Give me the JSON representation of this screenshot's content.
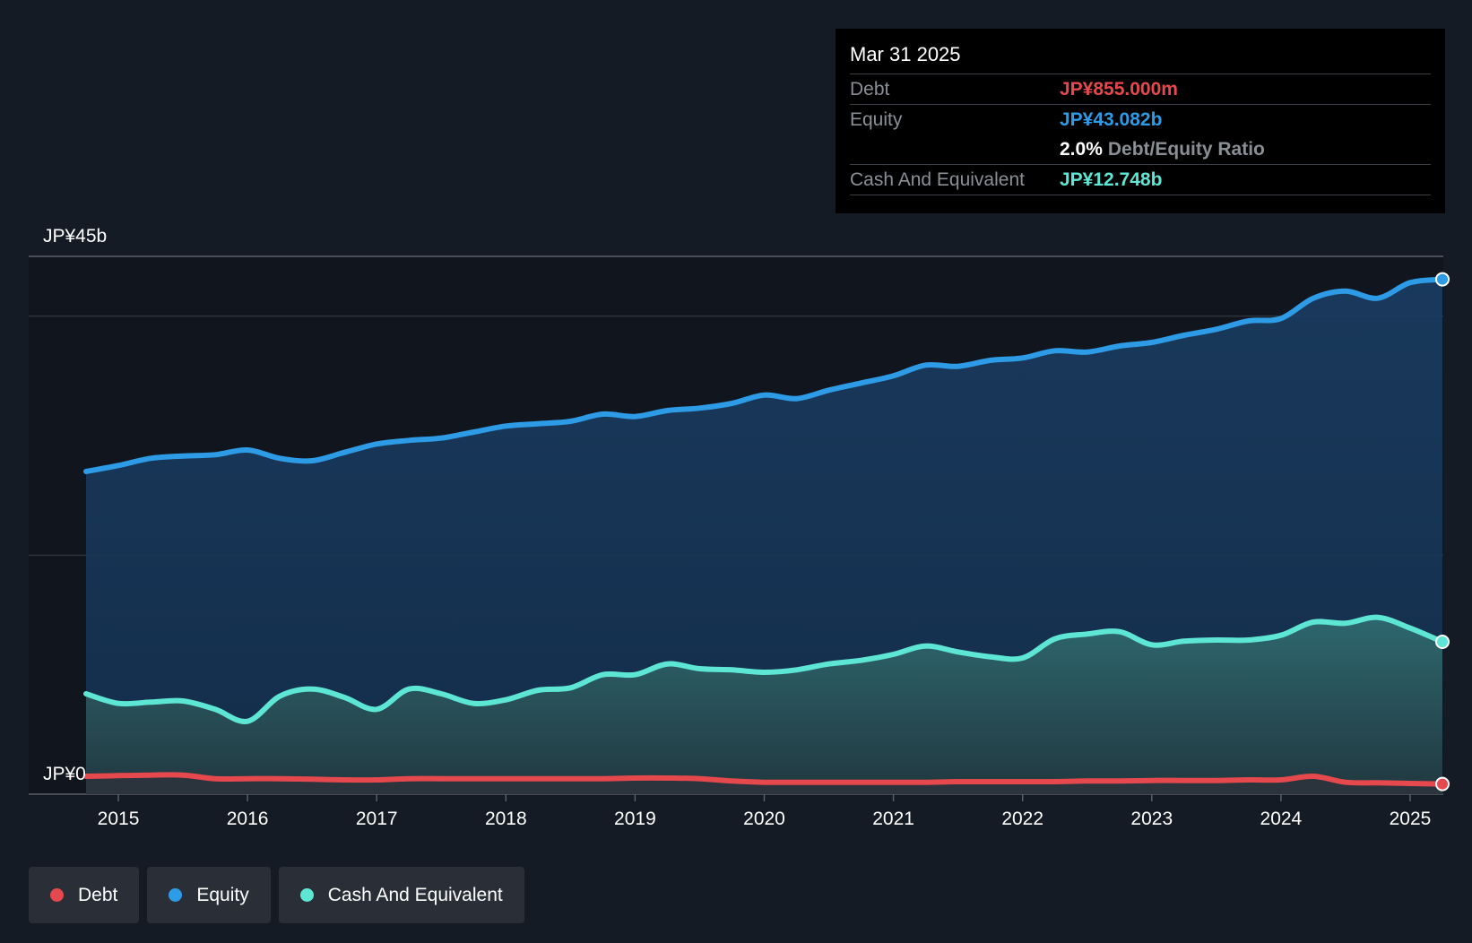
{
  "chart_data": {
    "type": "area",
    "title": "",
    "y_label_top": "JP¥45b",
    "y_label_bottom": "JP¥0",
    "ylim": [
      0,
      45
    ],
    "x_ticks": [
      "2015",
      "2016",
      "2017",
      "2018",
      "2019",
      "2020",
      "2021",
      "2022",
      "2023",
      "2024",
      "2025"
    ],
    "x_range": [
      2014.75,
      2025.25
    ],
    "series": [
      {
        "name": "Equity",
        "color": "#2d9be6",
        "points": [
          [
            2014.75,
            27.0
          ],
          [
            2015.0,
            27.5
          ],
          [
            2015.25,
            28.1
          ],
          [
            2015.5,
            28.3
          ],
          [
            2015.75,
            28.4
          ],
          [
            2016.0,
            28.8
          ],
          [
            2016.25,
            28.1
          ],
          [
            2016.5,
            27.9
          ],
          [
            2016.75,
            28.6
          ],
          [
            2017.0,
            29.3
          ],
          [
            2017.25,
            29.6
          ],
          [
            2017.5,
            29.8
          ],
          [
            2017.75,
            30.3
          ],
          [
            2018.0,
            30.8
          ],
          [
            2018.25,
            31.0
          ],
          [
            2018.5,
            31.2
          ],
          [
            2018.75,
            31.8
          ],
          [
            2019.0,
            31.6
          ],
          [
            2019.25,
            32.1
          ],
          [
            2019.5,
            32.3
          ],
          [
            2019.75,
            32.7
          ],
          [
            2020.0,
            33.4
          ],
          [
            2020.25,
            33.1
          ],
          [
            2020.5,
            33.8
          ],
          [
            2020.75,
            34.4
          ],
          [
            2021.0,
            35.0
          ],
          [
            2021.25,
            35.9
          ],
          [
            2021.5,
            35.8
          ],
          [
            2021.75,
            36.3
          ],
          [
            2022.0,
            36.5
          ],
          [
            2022.25,
            37.1
          ],
          [
            2022.5,
            37.0
          ],
          [
            2022.75,
            37.5
          ],
          [
            2023.0,
            37.8
          ],
          [
            2023.25,
            38.4
          ],
          [
            2023.5,
            38.9
          ],
          [
            2023.75,
            39.6
          ],
          [
            2024.0,
            39.8
          ],
          [
            2024.25,
            41.5
          ],
          [
            2024.5,
            42.1
          ],
          [
            2024.75,
            41.5
          ],
          [
            2025.0,
            42.8
          ],
          [
            2025.25,
            43.082
          ]
        ]
      },
      {
        "name": "Cash And Equivalent",
        "color": "#5ee6d4",
        "points": [
          [
            2014.75,
            8.4
          ],
          [
            2015.0,
            7.6
          ],
          [
            2015.25,
            7.7
          ],
          [
            2015.5,
            7.8
          ],
          [
            2015.75,
            7.1
          ],
          [
            2016.0,
            6.1
          ],
          [
            2016.25,
            8.2
          ],
          [
            2016.5,
            8.8
          ],
          [
            2016.75,
            8.1
          ],
          [
            2017.0,
            7.1
          ],
          [
            2017.25,
            8.8
          ],
          [
            2017.5,
            8.4
          ],
          [
            2017.75,
            7.6
          ],
          [
            2018.0,
            7.9
          ],
          [
            2018.25,
            8.7
          ],
          [
            2018.5,
            8.9
          ],
          [
            2018.75,
            10.0
          ],
          [
            2019.0,
            10.0
          ],
          [
            2019.25,
            10.9
          ],
          [
            2019.5,
            10.5
          ],
          [
            2019.75,
            10.4
          ],
          [
            2020.0,
            10.2
          ],
          [
            2020.25,
            10.4
          ],
          [
            2020.5,
            10.9
          ],
          [
            2020.75,
            11.2
          ],
          [
            2021.0,
            11.7
          ],
          [
            2021.25,
            12.4
          ],
          [
            2021.5,
            11.9
          ],
          [
            2021.75,
            11.5
          ],
          [
            2022.0,
            11.4
          ],
          [
            2022.25,
            13.0
          ],
          [
            2022.5,
            13.4
          ],
          [
            2022.75,
            13.6
          ],
          [
            2023.0,
            12.5
          ],
          [
            2023.25,
            12.8
          ],
          [
            2023.5,
            12.9
          ],
          [
            2023.75,
            12.9
          ],
          [
            2024.0,
            13.3
          ],
          [
            2024.25,
            14.4
          ],
          [
            2024.5,
            14.3
          ],
          [
            2024.75,
            14.8
          ],
          [
            2025.0,
            13.9
          ],
          [
            2025.25,
            12.748
          ]
        ]
      },
      {
        "name": "Debt",
        "color": "#e5484d",
        "points": [
          [
            2014.75,
            1.5
          ],
          [
            2015.0,
            1.55
          ],
          [
            2015.25,
            1.6
          ],
          [
            2015.5,
            1.6
          ],
          [
            2015.75,
            1.3
          ],
          [
            2016.0,
            1.3
          ],
          [
            2016.25,
            1.3
          ],
          [
            2016.5,
            1.25
          ],
          [
            2016.75,
            1.2
          ],
          [
            2017.0,
            1.2
          ],
          [
            2017.25,
            1.3
          ],
          [
            2017.5,
            1.3
          ],
          [
            2017.75,
            1.3
          ],
          [
            2018.0,
            1.3
          ],
          [
            2018.25,
            1.3
          ],
          [
            2018.5,
            1.3
          ],
          [
            2018.75,
            1.3
          ],
          [
            2019.0,
            1.35
          ],
          [
            2019.25,
            1.35
          ],
          [
            2019.5,
            1.3
          ],
          [
            2019.75,
            1.1
          ],
          [
            2020.0,
            1.0
          ],
          [
            2020.25,
            1.0
          ],
          [
            2020.5,
            1.0
          ],
          [
            2020.75,
            1.0
          ],
          [
            2021.0,
            1.0
          ],
          [
            2021.25,
            1.0
          ],
          [
            2021.5,
            1.05
          ],
          [
            2021.75,
            1.05
          ],
          [
            2022.0,
            1.05
          ],
          [
            2022.25,
            1.05
          ],
          [
            2022.5,
            1.1
          ],
          [
            2022.75,
            1.1
          ],
          [
            2023.0,
            1.15
          ],
          [
            2023.25,
            1.15
          ],
          [
            2023.5,
            1.15
          ],
          [
            2023.75,
            1.2
          ],
          [
            2024.0,
            1.2
          ],
          [
            2024.25,
            1.5
          ],
          [
            2024.5,
            1.0
          ],
          [
            2024.75,
            0.95
          ],
          [
            2025.0,
            0.9
          ],
          [
            2025.25,
            0.855
          ]
        ]
      }
    ]
  },
  "tooltip": {
    "date": "Mar 31 2025",
    "debt_label": "Debt",
    "debt_value": "JP¥855.000m",
    "equity_label": "Equity",
    "equity_value": "JP¥43.082b",
    "ratio_value": "2.0%",
    "ratio_label": "Debt/Equity Ratio",
    "cash_label": "Cash And Equivalent",
    "cash_value": "JP¥12.748b"
  },
  "legend": {
    "items": [
      {
        "label": "Debt",
        "color": "#e5484d"
      },
      {
        "label": "Equity",
        "color": "#2d9be6"
      },
      {
        "label": "Cash And Equivalent",
        "color": "#5ee6d4"
      }
    ]
  }
}
